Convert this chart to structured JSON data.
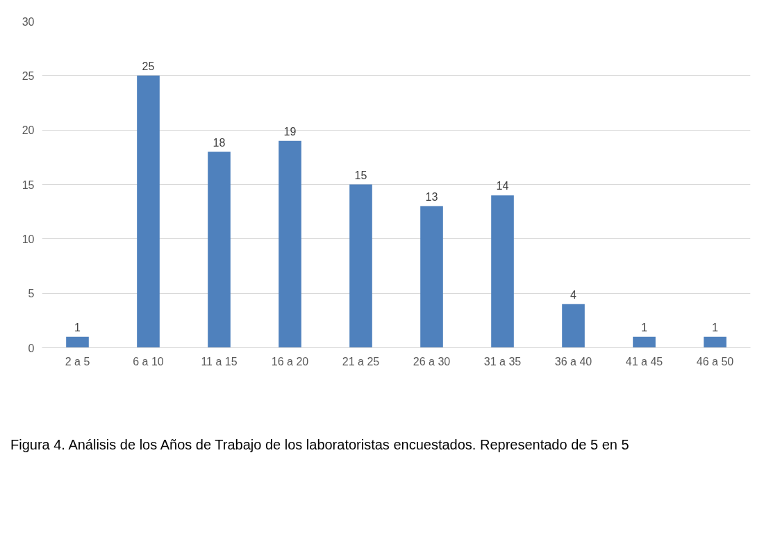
{
  "chart_data": {
    "type": "bar",
    "categories": [
      "2 a 5",
      "6 a 10",
      "11 a 15",
      "16 a 20",
      "21 a 25",
      "26 a 30",
      "31 a 35",
      "36 a 40",
      "41 a 45",
      "46 a 50"
    ],
    "values": [
      1,
      25,
      18,
      19,
      15,
      13,
      14,
      4,
      1,
      1
    ],
    "color": "#4f81bd",
    "ylim": [
      0,
      30
    ],
    "yticks": [
      0,
      5,
      10,
      15,
      20,
      25,
      30
    ],
    "grid": "y",
    "data_labels": true,
    "annotations": [
      "Figura 4. Análisis de los Años de Trabajo de los laboratoristas encuestados. Representado de 5 en 5"
    ]
  }
}
